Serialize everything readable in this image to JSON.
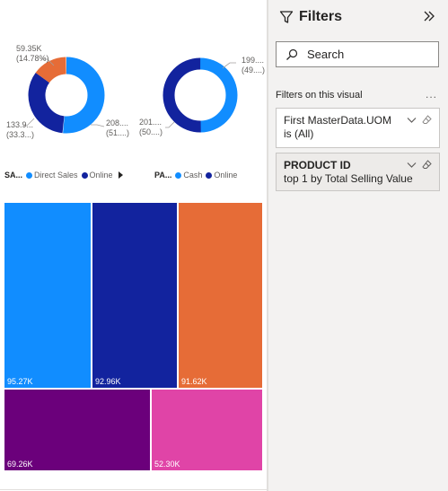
{
  "donut_left": {
    "labels": [
      {
        "value": "59.35K",
        "pct": "(14.78%)"
      },
      {
        "value": "208....",
        "pct": "(51....)"
      },
      {
        "value": "133.9...",
        "pct": "(33.3...)"
      }
    ],
    "slices": [
      {
        "category": "Direct Sales",
        "value": 208,
        "color": "#118dff"
      },
      {
        "category": "Online",
        "value": 133.9,
        "color": "#12239e"
      },
      {
        "category": "",
        "value": 59.35,
        "color": "#e66c37"
      }
    ]
  },
  "donut_right": {
    "labels": [
      {
        "value": "199....",
        "pct": "(49....)"
      },
      {
        "value": "201....",
        "pct": "(50....)"
      }
    ],
    "slices": [
      {
        "category": "Cash",
        "value": 199,
        "color": "#118dff"
      },
      {
        "category": "Online",
        "value": 201,
        "color": "#12239e"
      }
    ]
  },
  "legend_left": {
    "title": "SA...",
    "items": [
      {
        "label": "Direct Sales",
        "color": "#118dff"
      },
      {
        "label": "Online",
        "color": "#12239e"
      }
    ]
  },
  "legend_right": {
    "title": "PA...",
    "items": [
      {
        "label": "Cash",
        "color": "#118dff"
      },
      {
        "label": "Online",
        "color": "#12239e"
      }
    ]
  },
  "treemap": {
    "tiles": [
      {
        "label": "95.27K",
        "value": 95.27,
        "color": "#118dff"
      },
      {
        "label": "92.96K",
        "value": 92.96,
        "color": "#12239e"
      },
      {
        "label": "91.62K",
        "value": 91.62,
        "color": "#e66c37"
      },
      {
        "label": "69.26K",
        "value": 69.26,
        "color": "#6b007b"
      },
      {
        "label": "52.30K",
        "value": 52.3,
        "color": "#e044a7"
      }
    ]
  },
  "filters": {
    "title": "Filters",
    "search_placeholder": "Search",
    "section_label": "Filters on this visual",
    "more_label": "...",
    "cards": [
      {
        "title": "First MasterData.UOM",
        "subtitle": "is (All)"
      },
      {
        "title": "PRODUCT ID",
        "subtitle": "top 1 by Total Selling Value"
      }
    ]
  }
}
